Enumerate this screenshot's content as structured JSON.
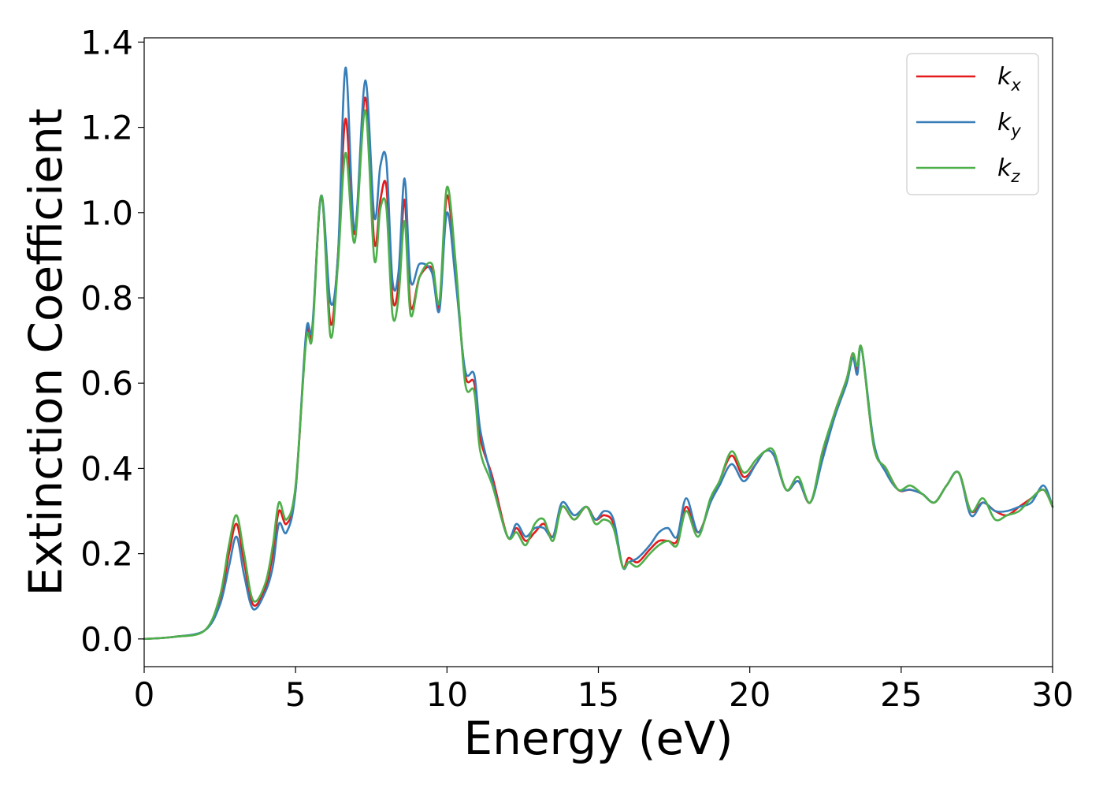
{
  "chart_data": {
    "type": "line",
    "title": "",
    "xlabel": "Energy (eV)",
    "ylabel": "Extinction Coefficient",
    "xlim": [
      0,
      30
    ],
    "ylim": [
      -0.065,
      1.41
    ],
    "xticks": [
      0,
      5,
      10,
      15,
      20,
      25,
      30
    ],
    "xtick_labels": [
      "0",
      "5",
      "10",
      "15",
      "20",
      "25",
      "30"
    ],
    "yticks": [
      0.0,
      0.2,
      0.4,
      0.6,
      0.8,
      1.0,
      1.2,
      1.4
    ],
    "ytick_labels": [
      "0.0",
      "0.2",
      "0.4",
      "0.6",
      "0.8",
      "1.0",
      "1.2",
      "1.4"
    ],
    "grid": false,
    "legend_position": "top-right",
    "x": [
      0,
      1.0,
      2.0,
      2.5,
      2.8,
      3.05,
      3.3,
      3.6,
      4.0,
      4.25,
      4.45,
      4.7,
      5.0,
      5.35,
      5.55,
      5.85,
      6.15,
      6.4,
      6.65,
      6.95,
      7.3,
      7.6,
      7.8,
      8.0,
      8.2,
      8.4,
      8.6,
      8.8,
      9.1,
      9.5,
      9.75,
      10.0,
      10.3,
      10.6,
      10.9,
      11.1,
      11.5,
      12.0,
      12.3,
      12.6,
      12.9,
      13.2,
      13.5,
      13.8,
      14.2,
      14.6,
      14.9,
      15.2,
      15.5,
      15.8,
      16.0,
      16.3,
      16.7,
      17.0,
      17.3,
      17.6,
      17.9,
      18.3,
      18.7,
      19.0,
      19.4,
      19.8,
      20.2,
      20.5,
      20.8,
      21.2,
      21.6,
      22.0,
      22.4,
      22.8,
      23.2,
      23.4,
      23.55,
      23.7,
      24.1,
      24.5,
      24.9,
      25.3,
      25.7,
      26.1,
      26.5,
      26.9,
      27.3,
      27.7,
      28.1,
      28.5,
      28.9,
      29.3,
      29.7,
      30.0
    ],
    "series": [
      {
        "name": "k_x",
        "label_base": "k",
        "label_sub": "x",
        "color": "#e41a1c",
        "values": [
          0.0,
          0.005,
          0.02,
          0.09,
          0.2,
          0.27,
          0.18,
          0.08,
          0.12,
          0.2,
          0.3,
          0.27,
          0.35,
          0.71,
          0.72,
          1.04,
          0.74,
          0.9,
          1.22,
          0.95,
          1.27,
          0.93,
          1.03,
          1.06,
          0.8,
          0.83,
          1.03,
          0.78,
          0.85,
          0.87,
          0.78,
          1.04,
          0.85,
          0.62,
          0.6,
          0.47,
          0.38,
          0.24,
          0.26,
          0.23,
          0.25,
          0.27,
          0.24,
          0.31,
          0.28,
          0.31,
          0.28,
          0.29,
          0.27,
          0.17,
          0.19,
          0.18,
          0.21,
          0.23,
          0.23,
          0.23,
          0.31,
          0.25,
          0.32,
          0.37,
          0.43,
          0.38,
          0.41,
          0.44,
          0.43,
          0.35,
          0.37,
          0.32,
          0.43,
          0.53,
          0.61,
          0.67,
          0.63,
          0.68,
          0.45,
          0.4,
          0.35,
          0.35,
          0.34,
          0.32,
          0.36,
          0.39,
          0.3,
          0.32,
          0.3,
          0.29,
          0.31,
          0.33,
          0.35,
          0.31
        ]
      },
      {
        "name": "k_y",
        "label_base": "k",
        "label_sub": "y",
        "color": "#377eb8",
        "values": [
          0.0,
          0.005,
          0.02,
          0.08,
          0.17,
          0.24,
          0.15,
          0.07,
          0.11,
          0.17,
          0.27,
          0.25,
          0.35,
          0.72,
          0.73,
          1.04,
          0.79,
          0.9,
          1.34,
          0.96,
          1.31,
          0.99,
          1.11,
          1.12,
          0.84,
          0.86,
          1.08,
          0.84,
          0.88,
          0.86,
          0.77,
          1.0,
          0.83,
          0.63,
          0.62,
          0.49,
          0.37,
          0.24,
          0.27,
          0.24,
          0.26,
          0.26,
          0.24,
          0.32,
          0.29,
          0.31,
          0.28,
          0.3,
          0.28,
          0.17,
          0.18,
          0.19,
          0.22,
          0.25,
          0.26,
          0.24,
          0.33,
          0.25,
          0.32,
          0.36,
          0.41,
          0.37,
          0.41,
          0.44,
          0.43,
          0.35,
          0.37,
          0.32,
          0.42,
          0.52,
          0.6,
          0.66,
          0.62,
          0.68,
          0.46,
          0.39,
          0.35,
          0.35,
          0.34,
          0.32,
          0.36,
          0.39,
          0.29,
          0.32,
          0.3,
          0.3,
          0.31,
          0.32,
          0.36,
          0.31
        ]
      },
      {
        "name": "k_z",
        "label_base": "k",
        "label_sub": "z",
        "color": "#4daf4a",
        "values": [
          0.0,
          0.005,
          0.02,
          0.1,
          0.22,
          0.29,
          0.2,
          0.09,
          0.13,
          0.22,
          0.32,
          0.28,
          0.36,
          0.7,
          0.71,
          1.04,
          0.71,
          0.88,
          1.14,
          0.93,
          1.24,
          0.89,
          1.01,
          1.01,
          0.76,
          0.8,
          0.98,
          0.76,
          0.85,
          0.88,
          0.79,
          1.06,
          0.87,
          0.6,
          0.58,
          0.44,
          0.36,
          0.24,
          0.25,
          0.22,
          0.27,
          0.28,
          0.23,
          0.31,
          0.28,
          0.31,
          0.27,
          0.28,
          0.26,
          0.17,
          0.18,
          0.17,
          0.2,
          0.22,
          0.23,
          0.22,
          0.3,
          0.24,
          0.33,
          0.37,
          0.44,
          0.39,
          0.42,
          0.44,
          0.44,
          0.35,
          0.38,
          0.32,
          0.44,
          0.53,
          0.61,
          0.67,
          0.64,
          0.68,
          0.45,
          0.4,
          0.35,
          0.36,
          0.34,
          0.32,
          0.36,
          0.39,
          0.3,
          0.33,
          0.28,
          0.29,
          0.3,
          0.33,
          0.35,
          0.31
        ]
      }
    ]
  }
}
